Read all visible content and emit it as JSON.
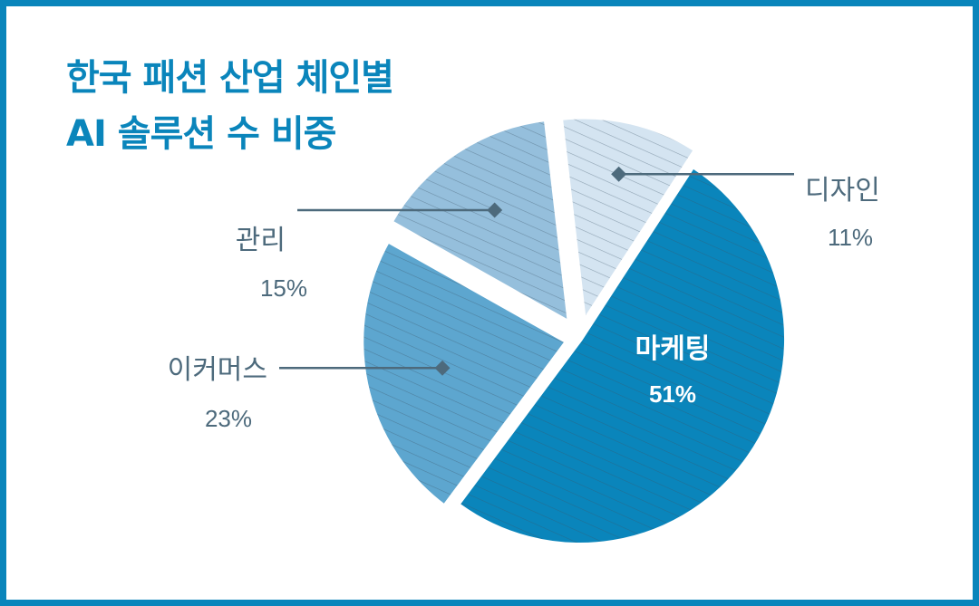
{
  "title": {
    "line1": "한국 패션 산업 체인별",
    "line2": "AI 솔루션 수 비중"
  },
  "chart_data": {
    "type": "pie",
    "title": "한국 패션 산업 체인별 AI 솔루션 수 비중",
    "slices": [
      {
        "name": "마케팅",
        "value": 51,
        "label": "51%",
        "color": "#0a85bb"
      },
      {
        "name": "이커머스",
        "value": 23,
        "label": "23%",
        "color": "#5da6cf"
      },
      {
        "name": "관리",
        "value": 15,
        "label": "15%",
        "color": "#95bfdc"
      },
      {
        "name": "디자인",
        "value": 11,
        "label": "11%",
        "color": "#d4e4f1"
      }
    ]
  }
}
